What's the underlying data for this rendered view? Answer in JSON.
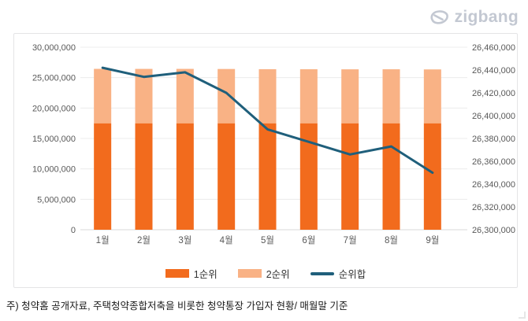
{
  "logo": {
    "text": "zigbang",
    "color": "#c3c8d2"
  },
  "footer": {
    "note": "주) 청약홈 공개자료, 주택청약종합저축을 비롯한 청약통장 가입자 현황/ 매월말 기준"
  },
  "chart_data": {
    "type": "bar",
    "subtype": "stacked-bar-with-line-combo",
    "categories": [
      "1월",
      "2월",
      "3월",
      "4월",
      "5월",
      "6월",
      "7월",
      "8월",
      "9월"
    ],
    "series": [
      {
        "name": "1순위",
        "type": "bar",
        "axis": "left",
        "color": "#f26b1d",
        "values": [
          17500000,
          17500000,
          17500000,
          17500000,
          17500000,
          17500000,
          17500000,
          17500000,
          17500000
        ]
      },
      {
        "name": "2순위",
        "type": "bar",
        "axis": "left",
        "color": "#f9b285",
        "values": [
          8942000,
          8934000,
          8938000,
          8920000,
          8888000,
          8877000,
          8866000,
          8873000,
          8850000
        ]
      },
      {
        "name": "순위합",
        "type": "line",
        "axis": "right",
        "color": "#1f5f7b",
        "values": [
          26442000,
          26434000,
          26438000,
          26420000,
          26388000,
          26377000,
          26366000,
          26373000,
          26350000
        ]
      }
    ],
    "left_axis": {
      "min": 0,
      "max": 30000000,
      "step": 5000000,
      "ticks": [
        0,
        5000000,
        10000000,
        15000000,
        20000000,
        25000000,
        30000000
      ]
    },
    "right_axis": {
      "min": 26300000,
      "max": 26460000,
      "step": 20000,
      "ticks": [
        26300000,
        26320000,
        26340000,
        26360000,
        26380000,
        26400000,
        26420000,
        26440000,
        26460000
      ]
    },
    "legend": [
      "1순위",
      "2순위",
      "순위합"
    ],
    "legend_position": "bottom",
    "grid": "horizontal-left-axis",
    "colors": {
      "grid": "#ececec",
      "baseline": "#d9d9d9",
      "tick_text": "#595959"
    }
  }
}
